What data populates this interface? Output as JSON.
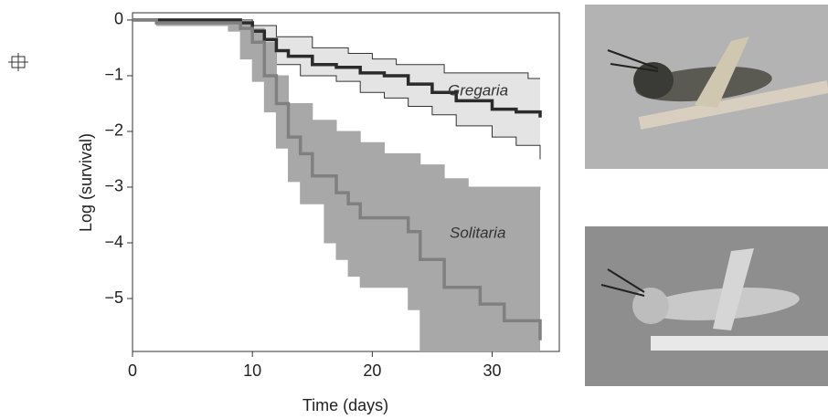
{
  "chart_data": {
    "type": "line",
    "step": true,
    "xlabel": "Time (days)",
    "ylabel": "Log (survival)",
    "xlim": [
      0,
      35.6
    ],
    "ylim": [
      -5.95,
      0.13
    ],
    "xticks": [
      0,
      10,
      20,
      30
    ],
    "yticks": [
      0,
      {
        "value": -1,
        "label": "−1"
      },
      {
        "value": -2,
        "label": "−2"
      },
      {
        "value": -3,
        "label": "−3"
      },
      {
        "value": -4,
        "label": "−4"
      },
      {
        "value": -5,
        "label": "−5"
      }
    ],
    "x": [
      0,
      2,
      8,
      9,
      10,
      11,
      12,
      13,
      14,
      15,
      16,
      17,
      18,
      19,
      20,
      21,
      22,
      23,
      24,
      25,
      26,
      27,
      28,
      29,
      30,
      31,
      32,
      33,
      34
    ],
    "series": [
      {
        "name": "Gregaria",
        "color": "#2b2b2b",
        "band_color": "#e4e4e4",
        "band_edge": "#333333",
        "values": [
          0,
          0,
          0,
          -0.05,
          -0.2,
          -0.35,
          -0.55,
          -0.65,
          -0.65,
          -0.8,
          -0.8,
          -0.85,
          -0.85,
          -0.95,
          -0.95,
          -1.0,
          -1.0,
          -1.15,
          -1.15,
          -1.3,
          -1.3,
          -1.45,
          -1.45,
          -1.45,
          -1.6,
          -1.6,
          -1.65,
          -1.65,
          -1.75
        ],
        "upper": [
          0,
          0,
          0,
          0,
          -0.1,
          -0.1,
          -0.3,
          -0.3,
          -0.3,
          -0.5,
          -0.5,
          -0.5,
          -0.6,
          -0.6,
          -0.7,
          -0.7,
          -0.8,
          -0.8,
          -0.8,
          -0.8,
          -0.95,
          -0.95,
          -0.95,
          -0.95,
          -0.95,
          -0.95,
          -0.95,
          -1.05,
          -1.05
        ],
        "lower": [
          0,
          0,
          0,
          -0.1,
          -0.35,
          -0.6,
          -0.8,
          -0.8,
          -1.0,
          -1.0,
          -1.0,
          -1.1,
          -1.1,
          -1.3,
          -1.3,
          -1.4,
          -1.4,
          -1.55,
          -1.55,
          -1.7,
          -1.7,
          -1.9,
          -1.9,
          -1.9,
          -2.1,
          -2.1,
          -2.25,
          -2.25,
          -2.5
        ]
      },
      {
        "name": "Solitaria",
        "color": "#808080",
        "band_color": "#a8a8a8",
        "band_edge": "#a8a8a8",
        "values": [
          0,
          -0.05,
          -0.05,
          -0.15,
          -0.4,
          -1.0,
          -1.5,
          -2.1,
          -2.4,
          -2.8,
          -2.8,
          -3.1,
          -3.3,
          -3.55,
          -3.55,
          -3.55,
          -3.55,
          -3.8,
          -4.3,
          -4.3,
          -4.8,
          -4.8,
          -4.8,
          -5.1,
          -5.1,
          -5.4,
          -5.4,
          -5.4,
          -5.75
        ],
        "upper": [
          0,
          0,
          0,
          -0.05,
          -0.15,
          -0.4,
          -1.0,
          -1.5,
          -1.5,
          -1.8,
          -1.8,
          -2.0,
          -2.0,
          -2.2,
          -2.2,
          -2.4,
          -2.4,
          -2.4,
          -2.6,
          -2.6,
          -2.85,
          -2.85,
          -3.0,
          -3.0,
          -3.0,
          -3.0,
          -3.0,
          -3.0,
          -3.05
        ],
        "lower": [
          0,
          -0.1,
          -0.2,
          -0.7,
          -1.1,
          -1.65,
          -2.3,
          -2.9,
          -3.3,
          -3.3,
          -4.0,
          -4.3,
          -4.6,
          -4.8,
          -4.8,
          -4.8,
          -4.8,
          -5.2,
          -5.95,
          -5.95,
          -5.95,
          -5.95,
          -5.95,
          -5.95,
          -5.95,
          -5.95,
          -5.95,
          -5.95,
          -5.95
        ]
      }
    ]
  }
}
